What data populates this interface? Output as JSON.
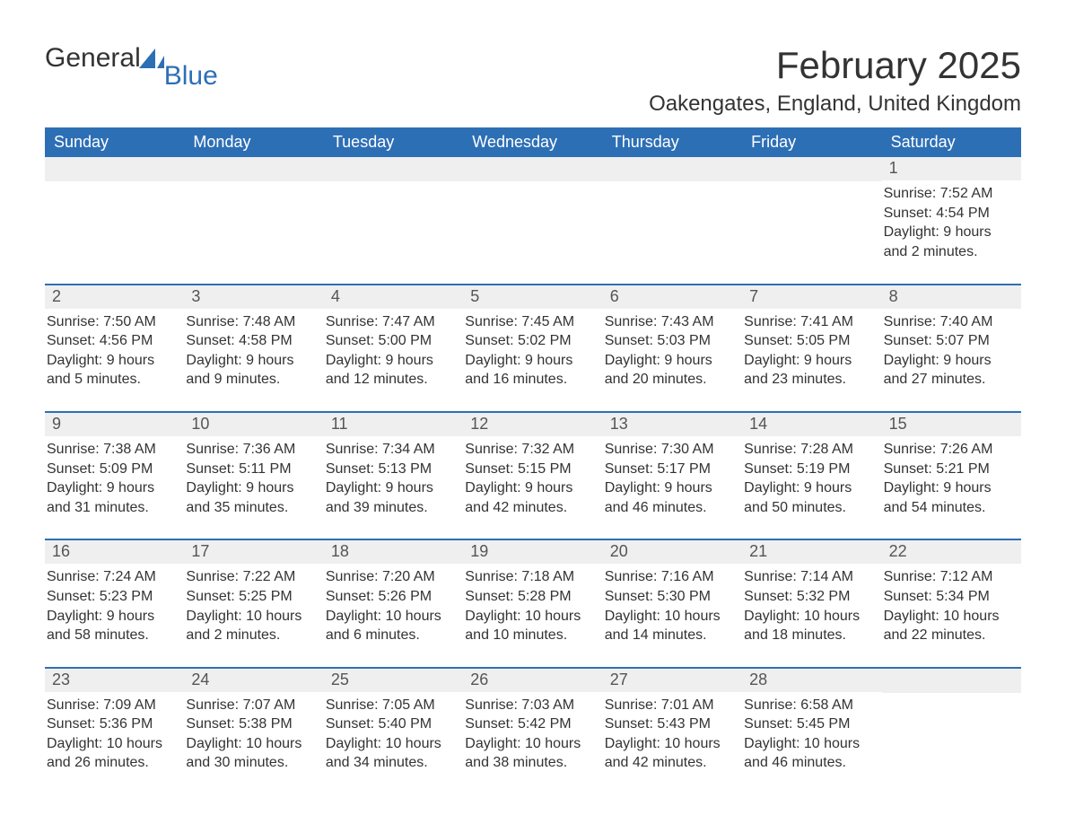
{
  "logo": {
    "word1": "General",
    "word2": "Blue"
  },
  "title": "February 2025",
  "location": "Oakengates, England, United Kingdom",
  "colors": {
    "header_bg": "#2d6fb5",
    "header_text": "#ffffff",
    "daynum_bg": "#efefef",
    "text": "#333333",
    "accent": "#2d6fb5",
    "page_bg": "#ffffff"
  },
  "day_headers": [
    "Sunday",
    "Monday",
    "Tuesday",
    "Wednesday",
    "Thursday",
    "Friday",
    "Saturday"
  ],
  "weeks": [
    [
      {
        "day": "",
        "lines": []
      },
      {
        "day": "",
        "lines": []
      },
      {
        "day": "",
        "lines": []
      },
      {
        "day": "",
        "lines": []
      },
      {
        "day": "",
        "lines": []
      },
      {
        "day": "",
        "lines": []
      },
      {
        "day": "1",
        "lines": [
          "Sunrise: 7:52 AM",
          "Sunset: 4:54 PM",
          "Daylight: 9 hours and 2 minutes."
        ]
      }
    ],
    [
      {
        "day": "2",
        "lines": [
          "Sunrise: 7:50 AM",
          "Sunset: 4:56 PM",
          "Daylight: 9 hours and 5 minutes."
        ]
      },
      {
        "day": "3",
        "lines": [
          "Sunrise: 7:48 AM",
          "Sunset: 4:58 PM",
          "Daylight: 9 hours and 9 minutes."
        ]
      },
      {
        "day": "4",
        "lines": [
          "Sunrise: 7:47 AM",
          "Sunset: 5:00 PM",
          "Daylight: 9 hours and 12 minutes."
        ]
      },
      {
        "day": "5",
        "lines": [
          "Sunrise: 7:45 AM",
          "Sunset: 5:02 PM",
          "Daylight: 9 hours and 16 minutes."
        ]
      },
      {
        "day": "6",
        "lines": [
          "Sunrise: 7:43 AM",
          "Sunset: 5:03 PM",
          "Daylight: 9 hours and 20 minutes."
        ]
      },
      {
        "day": "7",
        "lines": [
          "Sunrise: 7:41 AM",
          "Sunset: 5:05 PM",
          "Daylight: 9 hours and 23 minutes."
        ]
      },
      {
        "day": "8",
        "lines": [
          "Sunrise: 7:40 AM",
          "Sunset: 5:07 PM",
          "Daylight: 9 hours and 27 minutes."
        ]
      }
    ],
    [
      {
        "day": "9",
        "lines": [
          "Sunrise: 7:38 AM",
          "Sunset: 5:09 PM",
          "Daylight: 9 hours and 31 minutes."
        ]
      },
      {
        "day": "10",
        "lines": [
          "Sunrise: 7:36 AM",
          "Sunset: 5:11 PM",
          "Daylight: 9 hours and 35 minutes."
        ]
      },
      {
        "day": "11",
        "lines": [
          "Sunrise: 7:34 AM",
          "Sunset: 5:13 PM",
          "Daylight: 9 hours and 39 minutes."
        ]
      },
      {
        "day": "12",
        "lines": [
          "Sunrise: 7:32 AM",
          "Sunset: 5:15 PM",
          "Daylight: 9 hours and 42 minutes."
        ]
      },
      {
        "day": "13",
        "lines": [
          "Sunrise: 7:30 AM",
          "Sunset: 5:17 PM",
          "Daylight: 9 hours and 46 minutes."
        ]
      },
      {
        "day": "14",
        "lines": [
          "Sunrise: 7:28 AM",
          "Sunset: 5:19 PM",
          "Daylight: 9 hours and 50 minutes."
        ]
      },
      {
        "day": "15",
        "lines": [
          "Sunrise: 7:26 AM",
          "Sunset: 5:21 PM",
          "Daylight: 9 hours and 54 minutes."
        ]
      }
    ],
    [
      {
        "day": "16",
        "lines": [
          "Sunrise: 7:24 AM",
          "Sunset: 5:23 PM",
          "Daylight: 9 hours and 58 minutes."
        ]
      },
      {
        "day": "17",
        "lines": [
          "Sunrise: 7:22 AM",
          "Sunset: 5:25 PM",
          "Daylight: 10 hours and 2 minutes."
        ]
      },
      {
        "day": "18",
        "lines": [
          "Sunrise: 7:20 AM",
          "Sunset: 5:26 PM",
          "Daylight: 10 hours and 6 minutes."
        ]
      },
      {
        "day": "19",
        "lines": [
          "Sunrise: 7:18 AM",
          "Sunset: 5:28 PM",
          "Daylight: 10 hours and 10 minutes."
        ]
      },
      {
        "day": "20",
        "lines": [
          "Sunrise: 7:16 AM",
          "Sunset: 5:30 PM",
          "Daylight: 10 hours and 14 minutes."
        ]
      },
      {
        "day": "21",
        "lines": [
          "Sunrise: 7:14 AM",
          "Sunset: 5:32 PM",
          "Daylight: 10 hours and 18 minutes."
        ]
      },
      {
        "day": "22",
        "lines": [
          "Sunrise: 7:12 AM",
          "Sunset: 5:34 PM",
          "Daylight: 10 hours and 22 minutes."
        ]
      }
    ],
    [
      {
        "day": "23",
        "lines": [
          "Sunrise: 7:09 AM",
          "Sunset: 5:36 PM",
          "Daylight: 10 hours and 26 minutes."
        ]
      },
      {
        "day": "24",
        "lines": [
          "Sunrise: 7:07 AM",
          "Sunset: 5:38 PM",
          "Daylight: 10 hours and 30 minutes."
        ]
      },
      {
        "day": "25",
        "lines": [
          "Sunrise: 7:05 AM",
          "Sunset: 5:40 PM",
          "Daylight: 10 hours and 34 minutes."
        ]
      },
      {
        "day": "26",
        "lines": [
          "Sunrise: 7:03 AM",
          "Sunset: 5:42 PM",
          "Daylight: 10 hours and 38 minutes."
        ]
      },
      {
        "day": "27",
        "lines": [
          "Sunrise: 7:01 AM",
          "Sunset: 5:43 PM",
          "Daylight: 10 hours and 42 minutes."
        ]
      },
      {
        "day": "28",
        "lines": [
          "Sunrise: 6:58 AM",
          "Sunset: 5:45 PM",
          "Daylight: 10 hours and 46 minutes."
        ]
      },
      {
        "day": "",
        "lines": []
      }
    ]
  ]
}
